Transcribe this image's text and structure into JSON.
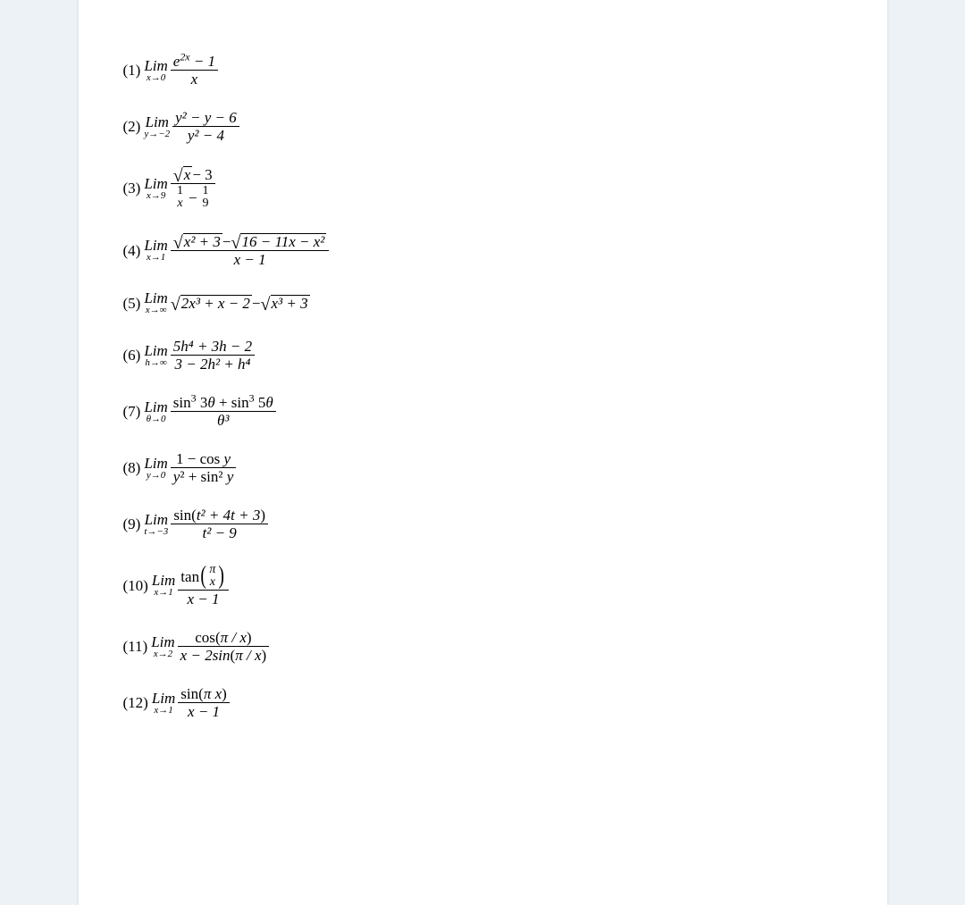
{
  "background_color": "#edf2f7",
  "page_color": "#ffffff",
  "font_family": "Times New Roman",
  "base_fontsize": 17,
  "sub_fontsize": 11,
  "text_color": "#000000",
  "problems": [
    {
      "label": "(1)",
      "limit_var": "x→0",
      "expr": "num:(e^{2x} − 1) / den:(x)"
    },
    {
      "label": "(2)",
      "limit_var": "y→−2",
      "expr": "num:(y² − y − 6) / den:(y² − 4)"
    },
    {
      "label": "(3)",
      "limit_var": "x→9",
      "expr": "num:(√x − 3) / den:(1/x − 1/9)"
    },
    {
      "label": "(4)",
      "limit_var": "x→1",
      "expr": "num:(√(x²+3) − √(16−11x−x²)) / den:(x − 1)"
    },
    {
      "label": "(5)",
      "limit_var": "x→∞",
      "expr": "√(2x³+x−2) − √(x³+3)"
    },
    {
      "label": "(6)",
      "limit_var": "h→∞",
      "expr": "num:(5h⁴ + 3h − 2) / den:(3 − 2h² + h⁴)"
    },
    {
      "label": "(7)",
      "limit_var": "θ→0",
      "expr": "num:(sin³3θ + sin³5θ) / den:(θ³)"
    },
    {
      "label": "(8)",
      "limit_var": "y→0",
      "expr": "num:(1 − cos y) / den:(y² + sin² y)"
    },
    {
      "label": "(9)",
      "limit_var": "t→−3",
      "expr": "num:(sin(t² + 4t + 3)) / den:(t² − 9)"
    },
    {
      "label": "(10)",
      "limit_var": "x→1",
      "expr": "num:(tan(π/x)) / den:(x − 1)"
    },
    {
      "label": "(11)",
      "limit_var": "x→2",
      "expr": "num:(cos(π/x)) / den:(x − 2sin(π/x))"
    },
    {
      "label": "(12)",
      "limit_var": "x→1",
      "expr": "num:(sin(πx)) / den:(x − 1)"
    }
  ],
  "labels": {
    "p1": "(1)",
    "p2": "(2)",
    "p3": "(3)",
    "p4": "(4)",
    "p5": "(5)",
    "p6": "(6)",
    "p7": "(7)",
    "p8": "(8)",
    "p9": "(9)",
    "p10": "(10)",
    "p11": "(11)",
    "p12": "(12)"
  },
  "lim_text": "Lim",
  "limvars": {
    "p1": "x→0",
    "p2": "y→−2",
    "p3": "x→9",
    "p4": "x→1",
    "p5": "x→∞",
    "p6": "h→∞",
    "p7": "θ→0",
    "p8": "y→0",
    "p9": "t→−3",
    "p10": "x→1",
    "p11": "x→2",
    "p12": "x→1"
  },
  "expr_parts": {
    "p1_num_a": "e",
    "p1_num_sup": "2",
    "p1_num_b": " − 1",
    "p1_den": "x",
    "p2_num": "y² − y − 6",
    "p2_den": "y² − 4",
    "p3_num_sqrt": "x",
    "p3_num_rest": " − 3",
    "p3_den_l": "1",
    "p3_den_lb": "x",
    "p3_den_mid": "−",
    "p3_den_r": "1",
    "p3_den_rb": "9",
    "p4_sqrt1": "x² + 3",
    "p4_mid": " − ",
    "p4_sqrt2": "16 − 11x − x²",
    "p4_den": "x − 1",
    "p5_sqrt1": "2x³ + x − 2",
    "p5_mid": " − ",
    "p5_sqrt2": "x³ + 3",
    "p6_num": "5h⁴ + 3h − 2",
    "p6_den": "3 − 2h² + h⁴",
    "p7_num": "sin³ 3θ + sin³ 5θ",
    "p7_den": "θ³",
    "p8_num": "1 − cos y",
    "p8_den": "y² + sin² y",
    "p9_num_a": "sin",
    "p9_num_paren": "t² + 4t + 3",
    "p9_den": "t² − 9",
    "p10_num_a": "tan",
    "p10_num_top": "π",
    "p10_num_bot": "x",
    "p10_den": "x − 1",
    "p11_num_a": "cos",
    "p11_num_paren": "π / x",
    "p11_den_a": "x − 2sin",
    "p11_den_paren": "π / x",
    "p12_num_a": "sin",
    "p12_num_paren": "π x",
    "p12_den": "x − 1"
  }
}
